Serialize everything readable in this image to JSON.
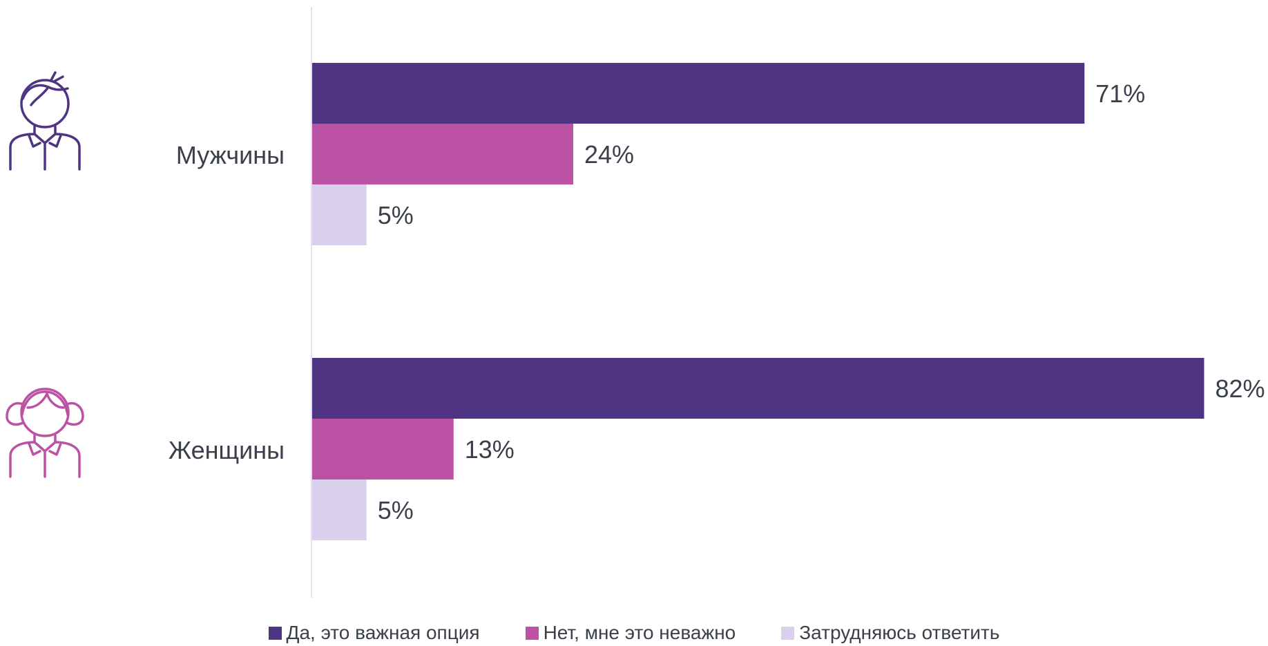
{
  "chart_data": {
    "type": "bar",
    "orientation": "horizontal",
    "categories": [
      "Мужчины",
      "Женщины"
    ],
    "series": [
      {
        "name": "Да, это важная опция",
        "values": [
          71,
          82
        ],
        "labels": [
          "71%",
          "82%"
        ],
        "color": "#4e3483"
      },
      {
        "name": "Нет, мне это неважно",
        "values": [
          24,
          13
        ],
        "labels": [
          "24%",
          "13%"
        ],
        "color": "#bc52a4"
      },
      {
        "name": "Затрудняюсь ответить",
        "values": [
          5,
          5
        ],
        "labels": [
          "5%",
          "5%"
        ],
        "color": "#d9d0ee"
      }
    ],
    "xlim": [
      0,
      100
    ],
    "grid": false,
    "legend_position": "bottom",
    "category_icons": [
      "man-icon",
      "woman-icon"
    ],
    "icon_colors": [
      "#4e3483",
      "#bc52a4"
    ]
  }
}
